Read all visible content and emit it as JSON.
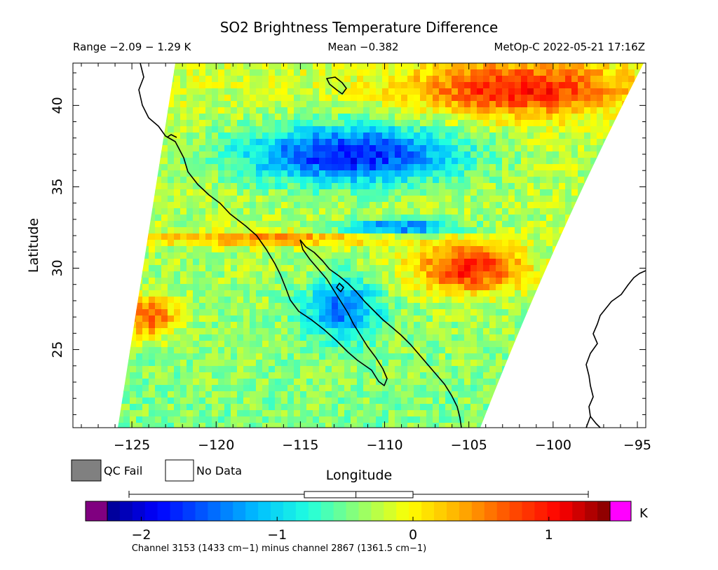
{
  "chart_data": {
    "type": "heatmap",
    "title": "SO2 Brightness Temperature Difference",
    "stats": {
      "range_text": "Range −2.09 − 1.29 K",
      "mean_text": "Mean −0.382",
      "satellite_text": "MetOp-C 2022-05-21 17:16Z",
      "range": [
        -2.09,
        1.29
      ],
      "mean": -0.382
    },
    "xlabel": "Longitude",
    "ylabel": "Latitude",
    "xlim": [
      -128.5,
      -94.5
    ],
    "ylim": [
      20.2,
      42.6
    ],
    "x_ticks": [
      -125,
      -120,
      -115,
      -110,
      -105,
      -100,
      -95
    ],
    "x_tick_labels": [
      "−125",
      "−120",
      "−115",
      "−110",
      "−105",
      "−100",
      "−95"
    ],
    "y_ticks": [
      25,
      30,
      35,
      40
    ],
    "y_tick_labels": [
      "25",
      "30",
      "35",
      "40"
    ],
    "features": [
      {
        "name": "strong negative band",
        "lon": -112,
        "lat": 37,
        "value": -1.9
      },
      {
        "name": "negative streak",
        "lon": -109,
        "lat": 32.5,
        "value": -1.5
      },
      {
        "name": "gulf negative",
        "lon": -112.5,
        "lat": 27.5,
        "value": -1.4
      },
      {
        "name": "positive plume",
        "lon": -105,
        "lat": 30,
        "value": 1.0
      },
      {
        "name": "north positive",
        "lon": -102,
        "lat": 41,
        "value": 0.9
      },
      {
        "name": "west positive",
        "lon": -124,
        "lat": 27,
        "value": 0.8
      },
      {
        "name": "positive band",
        "lon": -117,
        "lat": 31.8,
        "value": 0.5
      }
    ],
    "legend": {
      "qc_fail_label": "QC Fail",
      "no_data_label": "No Data",
      "qc_fail_color": "#808080",
      "no_data_color": "#ffffff"
    },
    "colorbar": {
      "unit": "K",
      "vmin": -2.25,
      "vmax": 1.45,
      "ticks": [
        -2,
        -1,
        0,
        1
      ],
      "tick_labels": [
        "−2",
        "−1",
        "0",
        "1"
      ],
      "under_color": "#800080",
      "over_color": "#ff00ff",
      "stops": [
        "#00008f",
        "#0000ff",
        "#0060ff",
        "#00c0ff",
        "#20ffdf",
        "#90ff70",
        "#ffff00",
        "#ffb000",
        "#ff5000",
        "#ff0000",
        "#800000"
      ],
      "boxplot": {
        "min": -2.09,
        "q1": -0.8,
        "median": -0.42,
        "q3": 0.0,
        "max": 1.29
      }
    },
    "channel_note": "Channel 3153 (1433 cm−1) minus channel 2867 (1361.5 cm−1)"
  }
}
